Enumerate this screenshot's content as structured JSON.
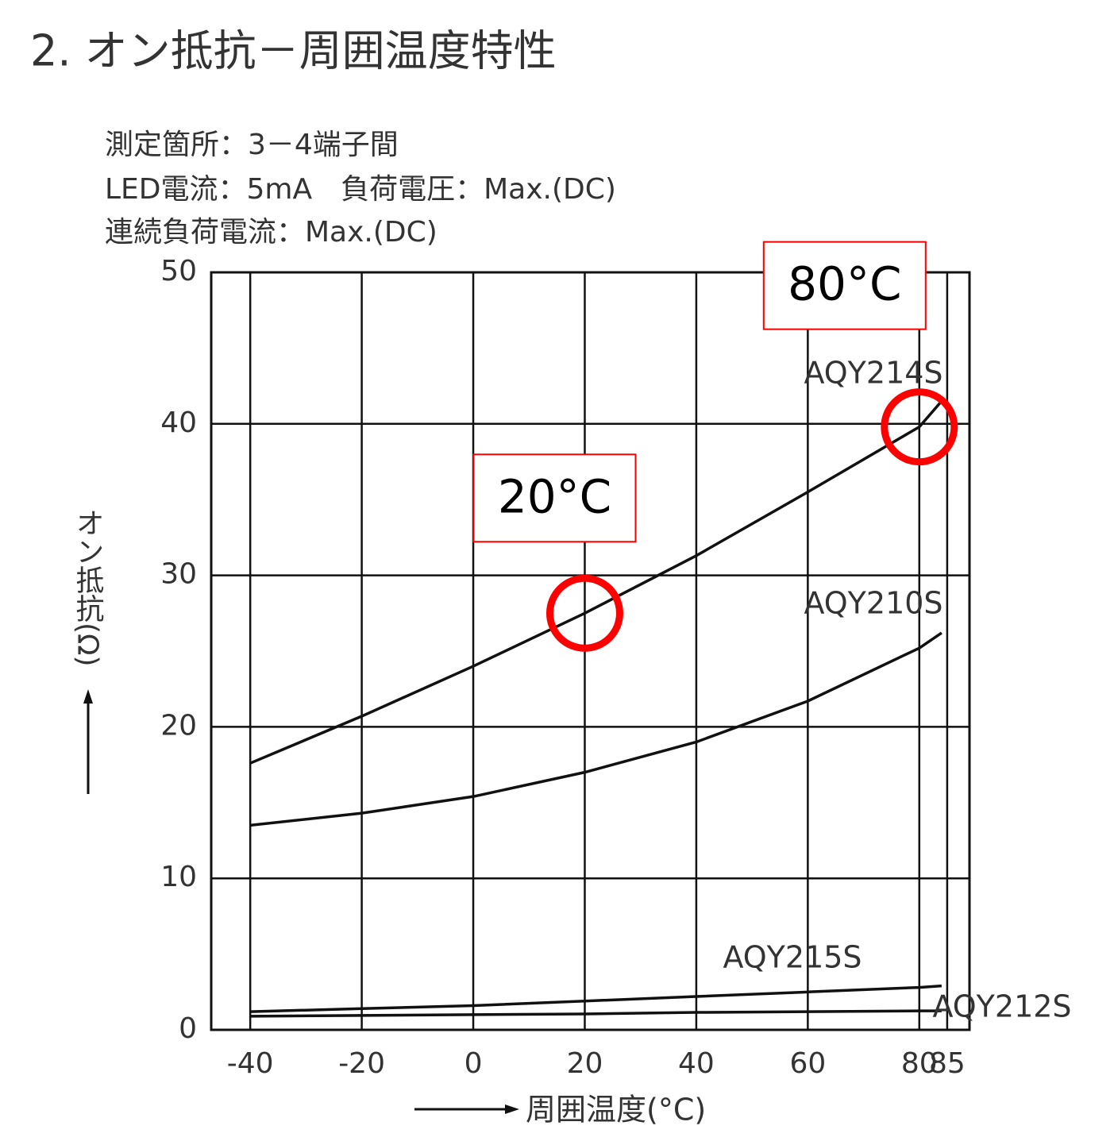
{
  "chart_data": {
    "type": "line",
    "title": "2. オン抵抗－周囲温度特性",
    "notes": [
      "測定箇所：3－4端子間",
      "LED電流：5mA　負荷電圧：Max.(DC)",
      "連続負荷電流：Max.(DC)"
    ],
    "y_label": "オン抵抗(Ω)",
    "x_label": "周囲温度(°C)",
    "x": [
      -40,
      -20,
      0,
      20,
      40,
      60,
      80,
      84
    ],
    "series": [
      {
        "name": "AQY214S",
        "color": "#111111",
        "values": [
          17.6,
          20.7,
          24,
          27.5,
          31.3,
          35.5,
          39.8,
          41.5
        ]
      },
      {
        "name": "AQY210S",
        "color": "#111111",
        "values": [
          13.5,
          14.3,
          15.4,
          17,
          19,
          21.7,
          25.2,
          26.2
        ]
      },
      {
        "name": "AQY215S",
        "color": "#111111",
        "values": [
          1.2,
          1.4,
          1.6,
          1.9,
          2.2,
          2.5,
          2.8,
          2.9
        ]
      },
      {
        "name": "AQY212S",
        "color": "#111111",
        "values": [
          0.9,
          0.95,
          1.0,
          1.05,
          1.15,
          1.2,
          1.25,
          1.25
        ]
      }
    ],
    "xlim": [
      -47,
      89
    ],
    "xticks": [
      -40,
      -20,
      0,
      20,
      40,
      60,
      80,
      85
    ],
    "ylim": [
      0,
      50
    ],
    "yticks": [
      0,
      10,
      20,
      30,
      40,
      50
    ],
    "grid": true,
    "annotations": [
      {
        "text": "20°C",
        "x": 20,
        "y": 27.5,
        "color": "#ff0000"
      },
      {
        "text": "80°C",
        "x": 80,
        "y": 39.8,
        "color": "#ff0000"
      }
    ]
  }
}
